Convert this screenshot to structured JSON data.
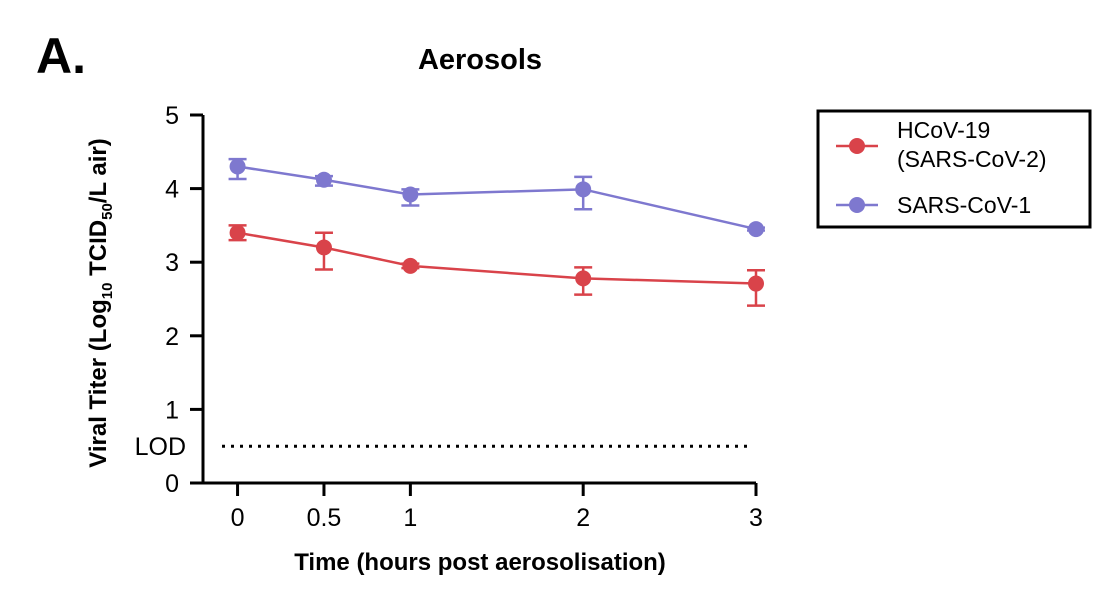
{
  "panel_label": "A.",
  "colors": {
    "sars_cov_2": "#d9434a",
    "sars_cov_1": "#7e78cf",
    "axis": "#000000"
  },
  "chart_data": {
    "type": "line",
    "title": "Aerosols",
    "xlabel": "Time (hours post aerosolisation)",
    "ylabel": {
      "prefix": "Viral Titer (Log",
      "sub1": "10",
      "mid": " TCID",
      "sub2": "50",
      "suffix": "/L air)"
    },
    "x_ticks": [
      0,
      0.5,
      1,
      2,
      3
    ],
    "x_tick_labels": [
      "0",
      "0.5",
      "1",
      "2",
      "3"
    ],
    "y_ticks": [
      0,
      1,
      2,
      3,
      4,
      5
    ],
    "y_tick_labels": [
      "0",
      "1",
      "2",
      "3",
      "4",
      "5"
    ],
    "xlim": [
      -0.2,
      3
    ],
    "ylim": [
      0,
      5
    ],
    "lod": {
      "label": "LOD",
      "value": 0.5
    },
    "legend_position": "top-right",
    "series": [
      {
        "name": "HCoV-19 (SARS-CoV-2)",
        "legend_lines": [
          "HCoV-19",
          "(SARS-CoV-2)"
        ],
        "color": "#d9434a",
        "x": [
          0,
          0.5,
          1,
          2,
          3
        ],
        "y": [
          3.4,
          3.2,
          2.95,
          2.78,
          2.71
        ],
        "err_upper": [
          0.1,
          0.2,
          0.03,
          0.15,
          0.18
        ],
        "err_lower": [
          0.1,
          0.3,
          0.03,
          0.22,
          0.3
        ]
      },
      {
        "name": "SARS-CoV-1",
        "legend_lines": [
          "SARS-CoV-1"
        ],
        "color": "#7e78cf",
        "x": [
          0,
          0.5,
          1,
          2,
          3
        ],
        "y": [
          4.3,
          4.12,
          3.92,
          3.99,
          3.45
        ],
        "err_upper": [
          0.1,
          0.05,
          0.07,
          0.17,
          0.02
        ],
        "err_lower": [
          0.17,
          0.08,
          0.15,
          0.27,
          0.02
        ]
      }
    ]
  }
}
